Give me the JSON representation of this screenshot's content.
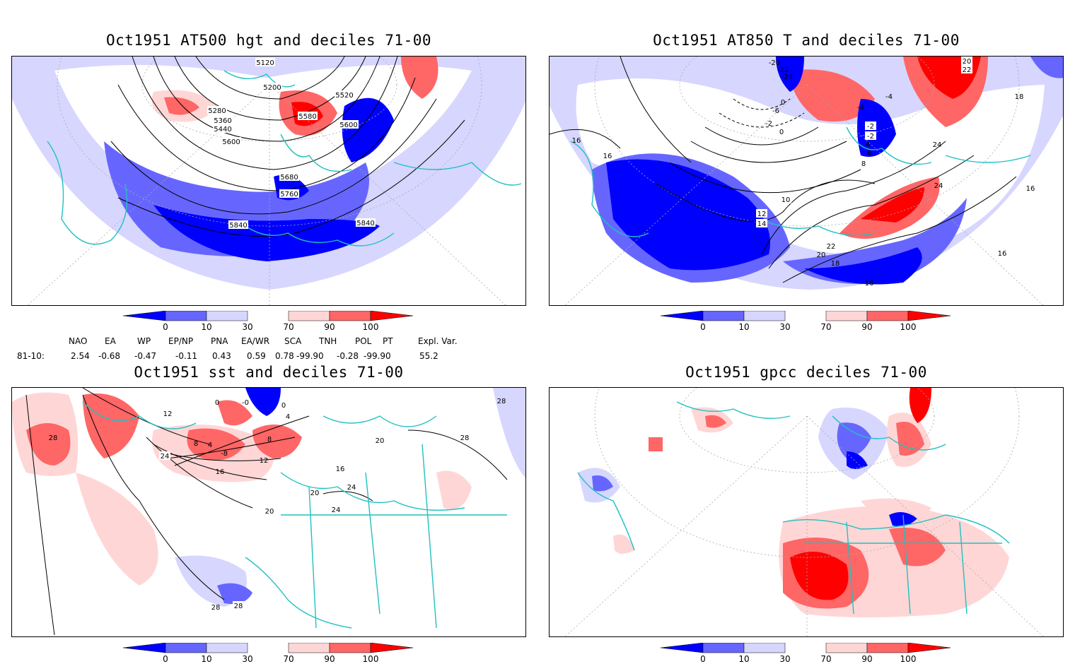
{
  "panels": [
    {
      "id": "hgt500",
      "title": "Oct1951 AT500 hgt and deciles 71-00",
      "contour_labels": [
        "5120",
        "5200",
        "5280",
        "5360",
        "5440",
        "5520",
        "5580",
        "5600",
        "5600",
        "5680",
        "5760",
        "5840",
        "5840"
      ]
    },
    {
      "id": "t850",
      "title": "Oct1951 AT850 T and deciles 71-00",
      "contour_labels": [
        "-20",
        "-22",
        "-24",
        "-4",
        "-6",
        "0",
        "-2",
        "0",
        "-4",
        "-2",
        "-2",
        "4",
        "6",
        "8",
        "10",
        "12",
        "14",
        "16",
        "16",
        "16",
        "18",
        "18",
        "20",
        "20",
        "22",
        "22",
        "24",
        "24",
        "16",
        "16"
      ]
    },
    {
      "id": "sst",
      "title": "Oct1951 sst and deciles 71-00",
      "contour_labels": [
        "28",
        "12",
        "24",
        "8",
        "4",
        "-8",
        "0",
        "-0",
        "0",
        "4",
        "8",
        "12",
        "16",
        "20",
        "24",
        "28",
        "28",
        "16",
        "20",
        "20",
        "24",
        "28",
        "28"
      ]
    },
    {
      "id": "gpcc",
      "title": "Oct1951 gpcc deciles 71-00",
      "contour_labels": []
    }
  ],
  "colorbar": {
    "labels": [
      "0",
      "10",
      "30",
      "70",
      "90",
      "100"
    ],
    "colors": [
      "#0000ff",
      "#6666ff",
      "#d6d6ff",
      "#ffffff",
      "#ffd6d6",
      "#ff6666",
      "#ff0000"
    ]
  },
  "indices": {
    "headers": [
      "NAO",
      "EA",
      "WP",
      "EP/NP",
      "PNA",
      "EA/WR",
      "SCA",
      "TNH",
      "POL",
      "PT",
      "Expl. Var."
    ],
    "row_label": "81-10:",
    "values": [
      "2.54",
      "-0.68",
      "-0.47",
      "-0.11",
      "0.43",
      "0.59",
      "0.78",
      "-99.90",
      "-0.28",
      "-99.90",
      "55.2"
    ]
  },
  "colors": {
    "coast": "#20c0c0",
    "contour": "#000000",
    "grid": "#aaaaaa"
  }
}
